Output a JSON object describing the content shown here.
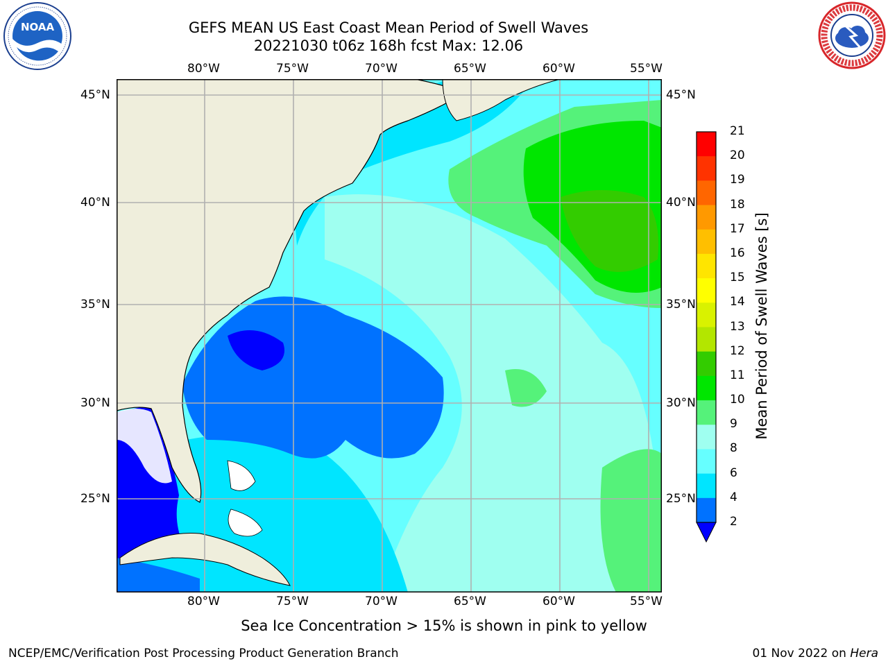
{
  "header": {
    "title_line1": "GEFS MEAN US East Coast Mean Period of Swell Waves",
    "title_line2": "20221030 t06z 168h fcst   Max: 12.06"
  },
  "logos": {
    "left": {
      "icon": "noaa-logo-icon",
      "ring_text": "NATIONAL OCEANIC AND ATMOSPHERIC ADMINISTRATION · U.S. DEPARTMENT OF COMMERCE",
      "center_text": "NOAA"
    },
    "right": {
      "icon": "nws-logo-icon",
      "ring_text": "NATIONAL WEATHER SERVICE"
    }
  },
  "map": {
    "lon_labels": [
      "80°W",
      "75°W",
      "70°W",
      "65°W",
      "60°W",
      "55°W"
    ],
    "lat_labels": [
      "45°N",
      "40°N",
      "35°N",
      "30°N",
      "25°N"
    ],
    "land_color": "#efeedc",
    "grid_color": "#b0b0b0"
  },
  "colorbar": {
    "title": "Mean Period of Swell Waves [s]",
    "tick_labels": [
      "2",
      "4",
      "6",
      "8",
      "9",
      "10",
      "11",
      "12",
      "13",
      "14",
      "15",
      "16",
      "17",
      "18",
      "19",
      "20",
      "21"
    ],
    "colors": [
      "#0000ff",
      "#0072ff",
      "#00e5ff",
      "#66ffff",
      "#9ffff0",
      "#55f27a",
      "#00e600",
      "#33cc00",
      "#b3e600",
      "#d9f200",
      "#ffff00",
      "#ffe500",
      "#ffbf00",
      "#ff9900",
      "#ff6600",
      "#ff3300",
      "#ff0000"
    ],
    "extend_low_color": "#0000ff"
  },
  "footer": {
    "note": "Sea Ice Concentration > 15% is shown in pink to yellow",
    "left": "NCEP/EMC/Verification Post Processing Product Generation Branch",
    "right_date": "01 Nov 2022 on",
    "right_host": "Hera"
  }
}
